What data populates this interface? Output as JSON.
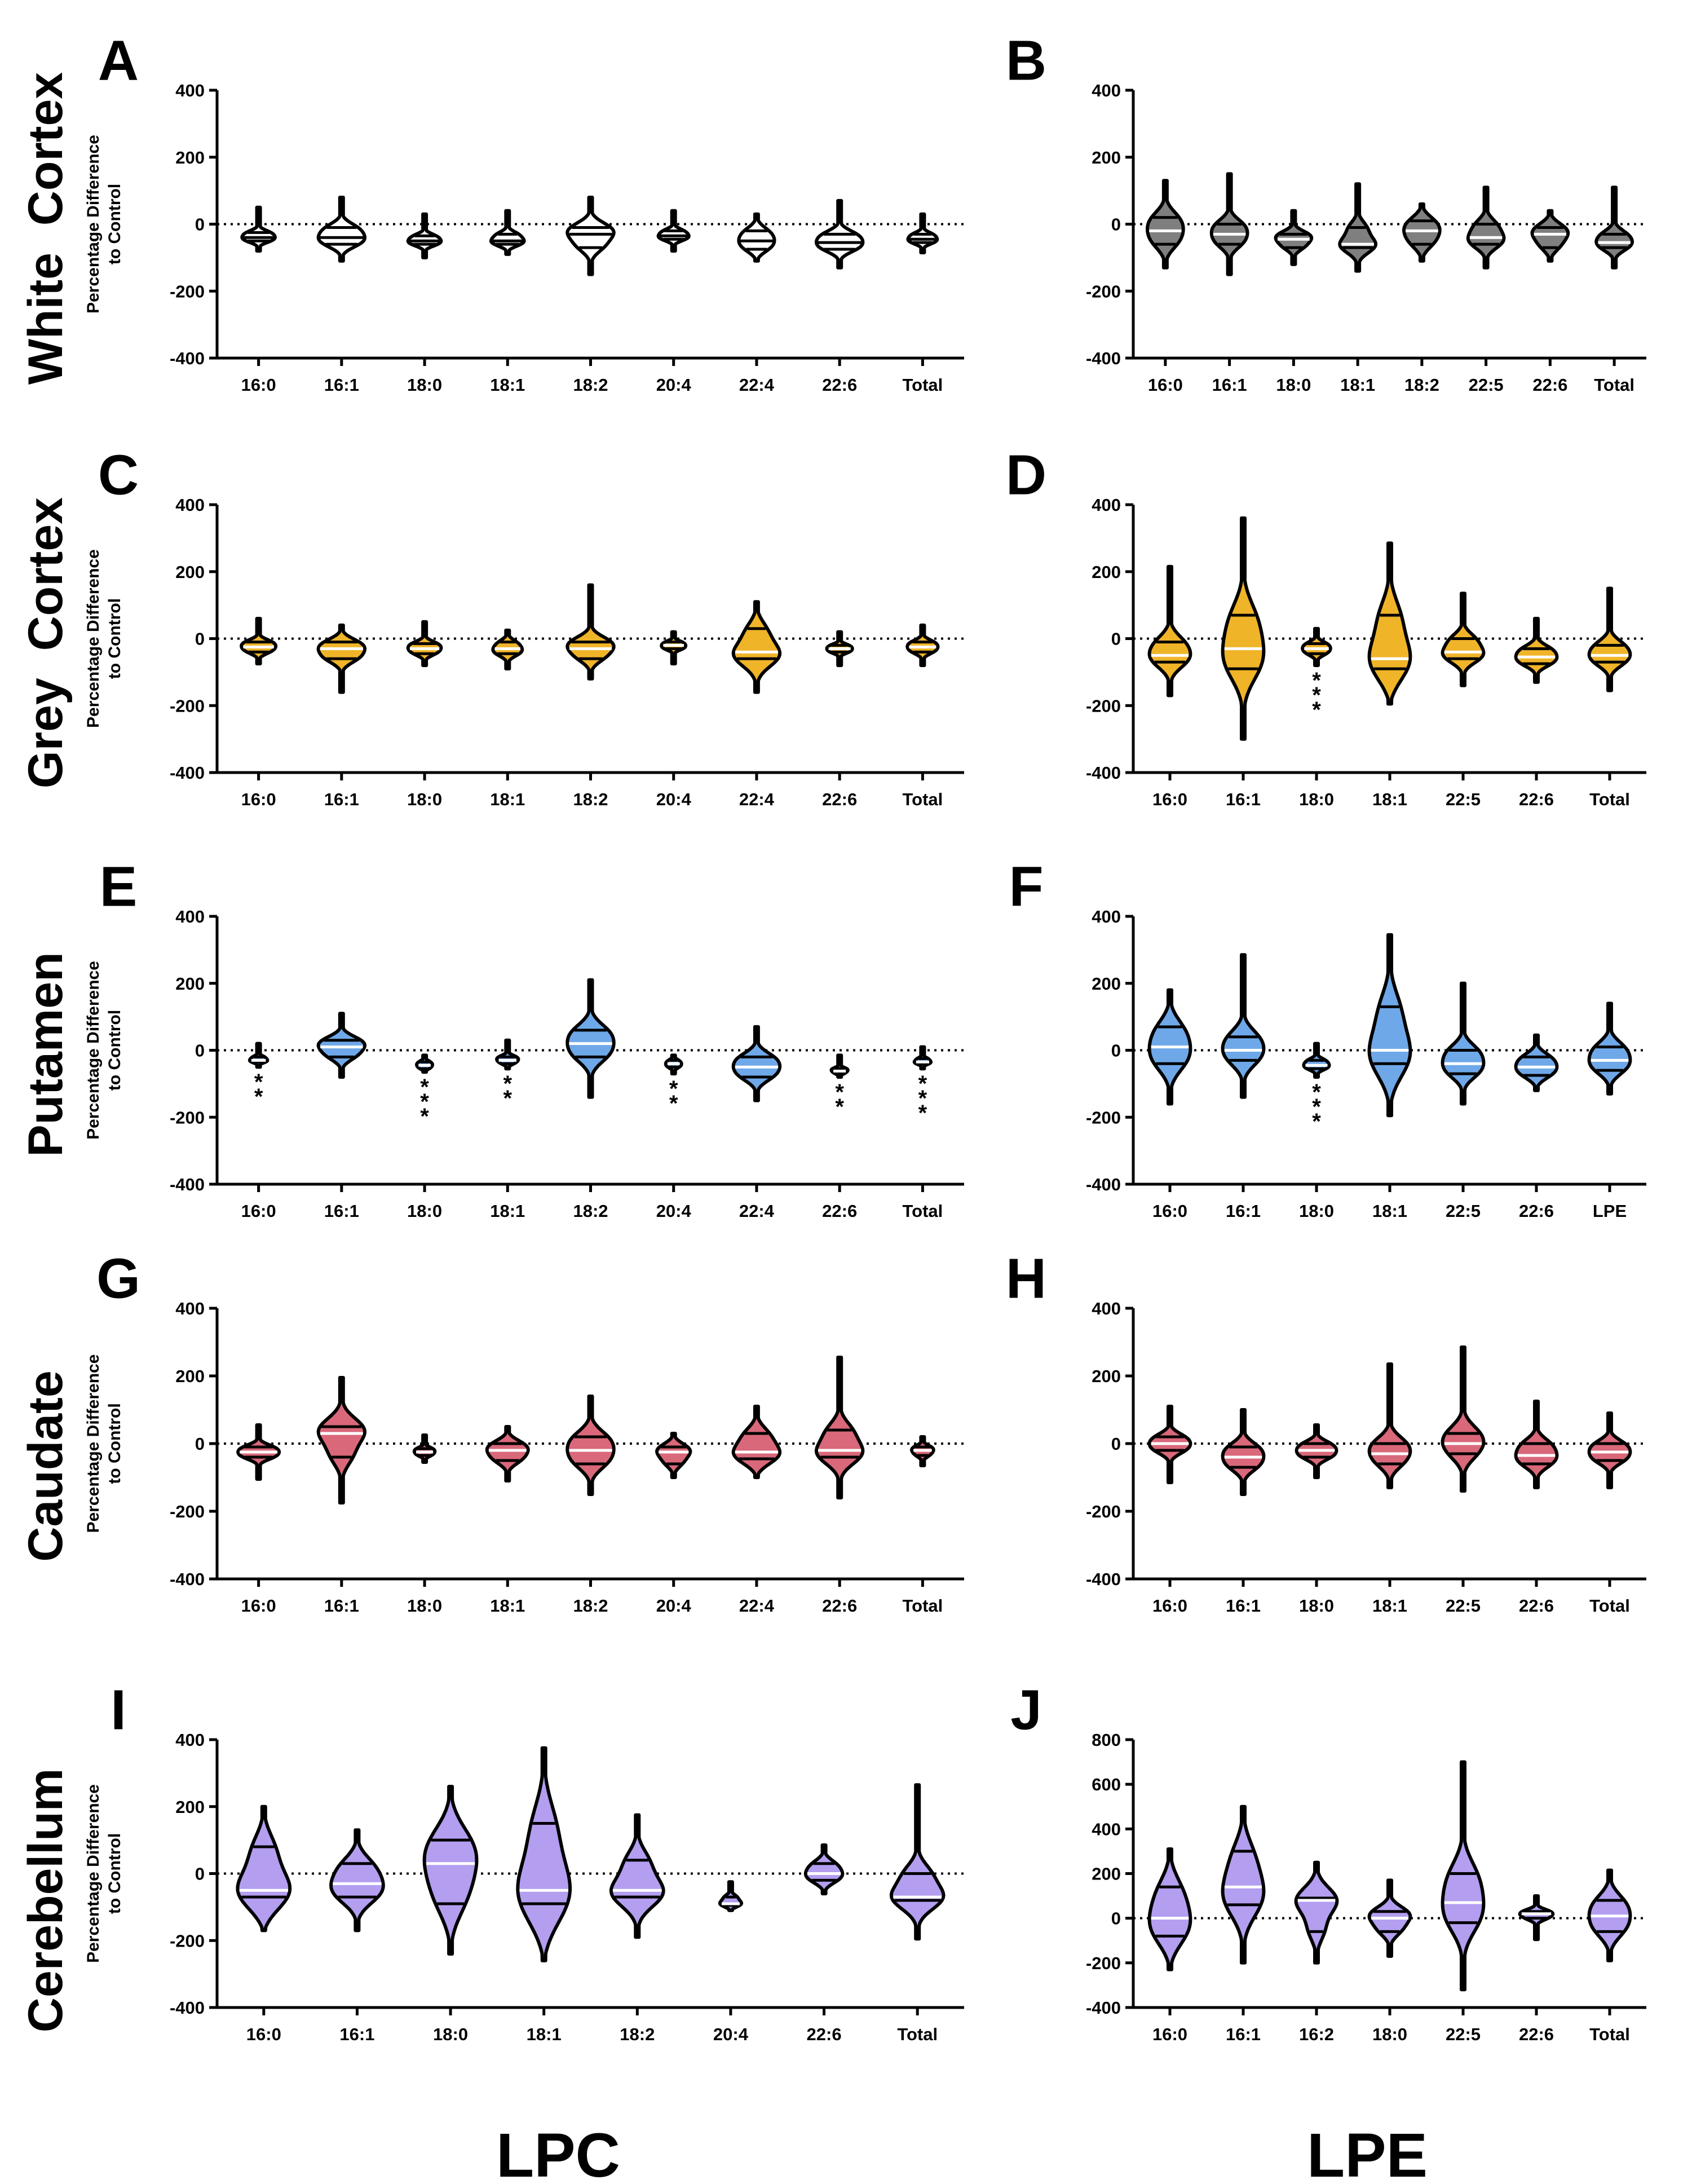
{
  "figure": {
    "column_labels": [
      "LPC",
      "LPE"
    ],
    "row_labels": [
      "White  Cortex",
      "Grey  Cortex",
      "Putamen",
      "Caudate",
      "Cerebellum"
    ],
    "y_axis_title_line1": "Percentage Difference",
    "y_axis_title_line2": "to Control",
    "colors": {
      "white_cortex_lpc": "#ffffff",
      "white_cortex_lpe": "#7f7f7f",
      "grey_cortex": "#f0b429",
      "putamen": "#6fa8e8",
      "caudate": "#d9687a",
      "cerebellum": "#b39ef0",
      "outline": "#000000"
    }
  },
  "chart_data": [
    {
      "panel": "A",
      "type": "violin",
      "region": "White  Cortex",
      "lipid_class": "LPC",
      "ylim": [
        -400,
        400
      ],
      "yticks": [
        -400,
        -200,
        0,
        200,
        400
      ],
      "reference_line": 0,
      "fill": "#ffffff",
      "median_line_color": "#000000",
      "categories": [
        "16:0",
        "16:1",
        "18:0",
        "18:1",
        "18:2",
        "20:4",
        "22:4",
        "22:6",
        "Total"
      ],
      "violins": [
        {
          "min": -80,
          "q1": -50,
          "median": -40,
          "q3": -25,
          "max": 50
        },
        {
          "min": -110,
          "q1": -60,
          "median": -40,
          "q3": -10,
          "max": 80
        },
        {
          "min": -100,
          "q1": -60,
          "median": -50,
          "q3": -35,
          "max": 30
        },
        {
          "min": -90,
          "q1": -60,
          "median": -50,
          "q3": -30,
          "max": 40
        },
        {
          "min": -150,
          "q1": -70,
          "median": -30,
          "q3": -10,
          "max": 80
        },
        {
          "min": -80,
          "q1": -45,
          "median": -35,
          "q3": -20,
          "max": 40
        },
        {
          "min": -110,
          "q1": -75,
          "median": -50,
          "q3": -20,
          "max": 30
        },
        {
          "min": -130,
          "q1": -75,
          "median": -55,
          "q3": -30,
          "max": 70
        },
        {
          "min": -85,
          "q1": -55,
          "median": -45,
          "q3": -30,
          "max": 30
        }
      ],
      "annotations": []
    },
    {
      "panel": "B",
      "type": "violin",
      "region": "White  Cortex",
      "lipid_class": "LPE",
      "ylim": [
        -400,
        400
      ],
      "yticks": [
        -400,
        -200,
        0,
        200,
        400
      ],
      "reference_line": 0,
      "fill": "#7f7f7f",
      "median_line_color": "#ffffff",
      "categories": [
        "16:0",
        "16:1",
        "18:0",
        "18:1",
        "18:2",
        "22:5",
        "22:6",
        "Total"
      ],
      "violins": [
        {
          "min": -130,
          "q1": -60,
          "median": -20,
          "q3": 20,
          "max": 130
        },
        {
          "min": -150,
          "q1": -60,
          "median": -30,
          "q3": 0,
          "max": 150
        },
        {
          "min": -120,
          "q1": -70,
          "median": -45,
          "q3": -30,
          "max": 40
        },
        {
          "min": -140,
          "q1": -70,
          "median": -60,
          "q3": -10,
          "max": 120
        },
        {
          "min": -110,
          "q1": -60,
          "median": -20,
          "q3": 10,
          "max": 60
        },
        {
          "min": -130,
          "q1": -60,
          "median": -40,
          "q3": 0,
          "max": 110
        },
        {
          "min": -110,
          "q1": -70,
          "median": -30,
          "q3": -10,
          "max": 40
        },
        {
          "min": -130,
          "q1": -70,
          "median": -55,
          "q3": -30,
          "max": 110
        }
      ],
      "annotations": []
    },
    {
      "panel": "C",
      "type": "violin",
      "region": "Grey  Cortex",
      "lipid_class": "LPC",
      "ylim": [
        -400,
        400
      ],
      "yticks": [
        -400,
        -200,
        0,
        200,
        400
      ],
      "reference_line": 0,
      "fill": "#f0b429",
      "median_line_color": "#ffffff",
      "categories": [
        "16:0",
        "16:1",
        "18:0",
        "18:1",
        "18:2",
        "20:4",
        "22:4",
        "22:6",
        "Total"
      ],
      "violins": [
        {
          "min": -75,
          "q1": -40,
          "median": -25,
          "q3": -10,
          "max": 60
        },
        {
          "min": -160,
          "q1": -60,
          "median": -30,
          "q3": -10,
          "max": 40
        },
        {
          "min": -80,
          "q1": -45,
          "median": -30,
          "q3": -15,
          "max": 50
        },
        {
          "min": -90,
          "q1": -45,
          "median": -30,
          "q3": -10,
          "max": 25
        },
        {
          "min": -120,
          "q1": -60,
          "median": -30,
          "q3": -10,
          "max": 160
        },
        {
          "min": -75,
          "q1": -30,
          "median": -20,
          "q3": -10,
          "max": 20
        },
        {
          "min": -160,
          "q1": -60,
          "median": -40,
          "q3": 30,
          "max": 110
        },
        {
          "min": -80,
          "q1": -40,
          "median": -30,
          "q3": -20,
          "max": 20
        },
        {
          "min": -80,
          "q1": -40,
          "median": -25,
          "q3": -10,
          "max": 40
        }
      ],
      "annotations": []
    },
    {
      "panel": "D",
      "type": "violin",
      "region": "Grey  Cortex",
      "lipid_class": "LPE",
      "ylim": [
        -400,
        400
      ],
      "yticks": [
        -400,
        -200,
        0,
        200,
        400
      ],
      "reference_line": 0,
      "fill": "#f0b429",
      "median_line_color": "#ffffff",
      "categories": [
        "16:0",
        "16:1",
        "18:0",
        "18:1",
        "22:5",
        "22:6",
        "Total"
      ],
      "violins": [
        {
          "min": -170,
          "q1": -70,
          "median": -50,
          "q3": -10,
          "max": 215
        },
        {
          "min": -300,
          "q1": -90,
          "median": -30,
          "q3": 70,
          "max": 360
        },
        {
          "min": -80,
          "q1": -45,
          "median": -30,
          "q3": -15,
          "max": 30
        },
        {
          "min": -195,
          "q1": -90,
          "median": -60,
          "q3": 70,
          "max": 285
        },
        {
          "min": -140,
          "q1": -60,
          "median": -40,
          "q3": 0,
          "max": 135
        },
        {
          "min": -130,
          "q1": -75,
          "median": -55,
          "q3": -30,
          "max": 60
        },
        {
          "min": -155,
          "q1": -70,
          "median": -50,
          "q3": -20,
          "max": 150
        }
      ],
      "annotations": [
        {
          "category": "18:0",
          "text": "***"
        }
      ]
    },
    {
      "panel": "E",
      "type": "violin",
      "region": "Putamen",
      "lipid_class": "LPC",
      "ylim": [
        -400,
        400
      ],
      "yticks": [
        -400,
        -200,
        0,
        200,
        400
      ],
      "reference_line": 0,
      "fill": "#6fa8e8",
      "median_line_color": "#ffffff",
      "categories": [
        "16:0",
        "16:1",
        "18:0",
        "18:1",
        "18:2",
        "20:4",
        "22:4",
        "22:6",
        "Total"
      ],
      "violins": [
        {
          "min": -50,
          "q1": -35,
          "median": -30,
          "q3": -20,
          "max": 20
        },
        {
          "min": -80,
          "q1": -20,
          "median": 10,
          "q3": 30,
          "max": 110
        },
        {
          "min": -65,
          "q1": -55,
          "median": -45,
          "q3": -35,
          "max": -15
        },
        {
          "min": -55,
          "q1": -40,
          "median": -30,
          "q3": -20,
          "max": 30
        },
        {
          "min": -140,
          "q1": -20,
          "median": 20,
          "q3": 60,
          "max": 210
        },
        {
          "min": -70,
          "q1": -50,
          "median": -40,
          "q3": -30,
          "max": -15
        },
        {
          "min": -150,
          "q1": -80,
          "median": -50,
          "q3": -20,
          "max": 70
        },
        {
          "min": -80,
          "q1": -70,
          "median": -62,
          "q3": -55,
          "max": -15
        },
        {
          "min": -55,
          "q1": -40,
          "median": -35,
          "q3": -25,
          "max": 10
        }
      ],
      "annotations": [
        {
          "category": "16:0",
          "text": "**"
        },
        {
          "category": "18:0",
          "text": "***"
        },
        {
          "category": "18:1",
          "text": "**"
        },
        {
          "category": "20:4",
          "text": "**"
        },
        {
          "category": "22:6",
          "text": "**"
        },
        {
          "category": "Total",
          "text": "***"
        }
      ]
    },
    {
      "panel": "F",
      "type": "violin",
      "region": "Putamen",
      "lipid_class": "LPE",
      "ylim": [
        -400,
        400
      ],
      "yticks": [
        -400,
        -200,
        0,
        200,
        400
      ],
      "reference_line": 0,
      "fill": "#6fa8e8",
      "median_line_color": "#ffffff",
      "categories": [
        "16:0",
        "16:1",
        "18:0",
        "18:1",
        "22:5",
        "22:6",
        "LPE"
      ],
      "violins": [
        {
          "min": -160,
          "q1": -40,
          "median": 10,
          "q3": 70,
          "max": 180
        },
        {
          "min": -140,
          "q1": -30,
          "median": 0,
          "q3": 40,
          "max": 285
        },
        {
          "min": -80,
          "q1": -55,
          "median": -45,
          "q3": -30,
          "max": 20
        },
        {
          "min": -195,
          "q1": -40,
          "median": 0,
          "q3": 130,
          "max": 345
        },
        {
          "min": -160,
          "q1": -70,
          "median": -40,
          "q3": 0,
          "max": 200
        },
        {
          "min": -120,
          "q1": -75,
          "median": -50,
          "q3": -20,
          "max": 45
        },
        {
          "min": -130,
          "q1": -60,
          "median": -30,
          "q3": 10,
          "max": 140
        }
      ],
      "annotations": [
        {
          "category": "18:0",
          "text": "***"
        }
      ]
    },
    {
      "panel": "G",
      "type": "violin",
      "region": "Caudate",
      "lipid_class": "LPC",
      "ylim": [
        -400,
        400
      ],
      "yticks": [
        -400,
        -200,
        0,
        200,
        400
      ],
      "reference_line": 0,
      "fill": "#d9687a",
      "median_line_color": "#ffffff",
      "categories": [
        "16:0",
        "16:1",
        "18:0",
        "18:1",
        "18:2",
        "20:4",
        "22:4",
        "22:6",
        "Total"
      ],
      "violins": [
        {
          "min": -105,
          "q1": -40,
          "median": -25,
          "q3": -10,
          "max": 55
        },
        {
          "min": -175,
          "q1": -40,
          "median": 30,
          "q3": 50,
          "max": 195
        },
        {
          "min": -55,
          "q1": -35,
          "median": -25,
          "q3": -15,
          "max": 25
        },
        {
          "min": -110,
          "q1": -50,
          "median": -20,
          "q3": 0,
          "max": 50
        },
        {
          "min": -150,
          "q1": -60,
          "median": -20,
          "q3": 20,
          "max": 140
        },
        {
          "min": -100,
          "q1": -60,
          "median": -25,
          "q3": -10,
          "max": 30
        },
        {
          "min": -100,
          "q1": -45,
          "median": -25,
          "q3": 30,
          "max": 110
        },
        {
          "min": -160,
          "q1": -40,
          "median": -20,
          "q3": 40,
          "max": 255
        },
        {
          "min": -65,
          "q1": -35,
          "median": -20,
          "q3": -10,
          "max": 20
        }
      ],
      "annotations": []
    },
    {
      "panel": "H",
      "type": "violin",
      "region": "Caudate",
      "lipid_class": "LPE",
      "ylim": [
        -400,
        400
      ],
      "yticks": [
        -400,
        -200,
        0,
        200,
        400
      ],
      "reference_line": 0,
      "fill": "#d9687a",
      "median_line_color": "#ffffff",
      "categories": [
        "16:0",
        "16:1",
        "18:0",
        "18:1",
        "22:5",
        "22:6",
        "Total"
      ],
      "violins": [
        {
          "min": -115,
          "q1": -20,
          "median": 0,
          "q3": 20,
          "max": 110
        },
        {
          "min": -150,
          "q1": -70,
          "median": -40,
          "q3": -10,
          "max": 100
        },
        {
          "min": -100,
          "q1": -40,
          "median": -20,
          "q3": 0,
          "max": 55
        },
        {
          "min": -130,
          "q1": -60,
          "median": -30,
          "q3": 0,
          "max": 235
        },
        {
          "min": -140,
          "q1": -30,
          "median": 0,
          "q3": 30,
          "max": 285
        },
        {
          "min": -130,
          "q1": -60,
          "median": -35,
          "q3": 0,
          "max": 125
        },
        {
          "min": -130,
          "q1": -50,
          "median": -25,
          "q3": 0,
          "max": 90
        }
      ],
      "annotations": []
    },
    {
      "panel": "I",
      "type": "violin",
      "region": "Cerebellum",
      "lipid_class": "LPC",
      "ylim": [
        -400,
        400
      ],
      "yticks": [
        -400,
        -200,
        0,
        200,
        400
      ],
      "reference_line": 0,
      "fill": "#b39ef0",
      "median_line_color": "#ffffff",
      "categories": [
        "16:0",
        "16:1",
        "18:0",
        "18:1",
        "18:2",
        "20:4",
        "22:6",
        "Total"
      ],
      "violins": [
        {
          "min": -170,
          "q1": -70,
          "median": -50,
          "q3": 80,
          "max": 200
        },
        {
          "min": -170,
          "q1": -70,
          "median": -30,
          "q3": 30,
          "max": 130
        },
        {
          "min": -240,
          "q1": -90,
          "median": 30,
          "q3": 100,
          "max": 260
        },
        {
          "min": -260,
          "q1": -90,
          "median": -50,
          "q3": 150,
          "max": 375
        },
        {
          "min": -190,
          "q1": -70,
          "median": -50,
          "q3": 40,
          "max": 175
        },
        {
          "min": -110,
          "q1": -95,
          "median": -90,
          "q3": -70,
          "max": -25
        },
        {
          "min": -60,
          "q1": -20,
          "median": 0,
          "q3": 30,
          "max": 85
        },
        {
          "min": -195,
          "q1": -80,
          "median": -70,
          "q3": 0,
          "max": 265
        }
      ],
      "annotations": []
    },
    {
      "panel": "J",
      "type": "violin",
      "region": "Cerebellum",
      "lipid_class": "LPE",
      "ylim": [
        -400,
        800
      ],
      "yticks": [
        -400,
        -200,
        0,
        200,
        400,
        600,
        800
      ],
      "reference_line": 0,
      "fill": "#b39ef0",
      "median_line_color": "#ffffff",
      "categories": [
        "16:0",
        "16:1",
        "16:2",
        "18:0",
        "22:5",
        "22:6",
        "Total"
      ],
      "violins": [
        {
          "min": -230,
          "q1": -80,
          "median": 0,
          "q3": 140,
          "max": 310
        },
        {
          "min": -200,
          "q1": 60,
          "median": 140,
          "q3": 300,
          "max": 500
        },
        {
          "min": -200,
          "q1": -60,
          "median": 80,
          "q3": 90,
          "max": 250
        },
        {
          "min": -170,
          "q1": -60,
          "median": 0,
          "q3": 30,
          "max": 170
        },
        {
          "min": -320,
          "q1": -20,
          "median": 70,
          "q3": 200,
          "max": 700
        },
        {
          "min": -95,
          "q1": 0,
          "median": 20,
          "q3": 30,
          "max": 100
        },
        {
          "min": -190,
          "q1": -60,
          "median": 10,
          "q3": 80,
          "max": 215
        }
      ],
      "annotations": []
    }
  ]
}
